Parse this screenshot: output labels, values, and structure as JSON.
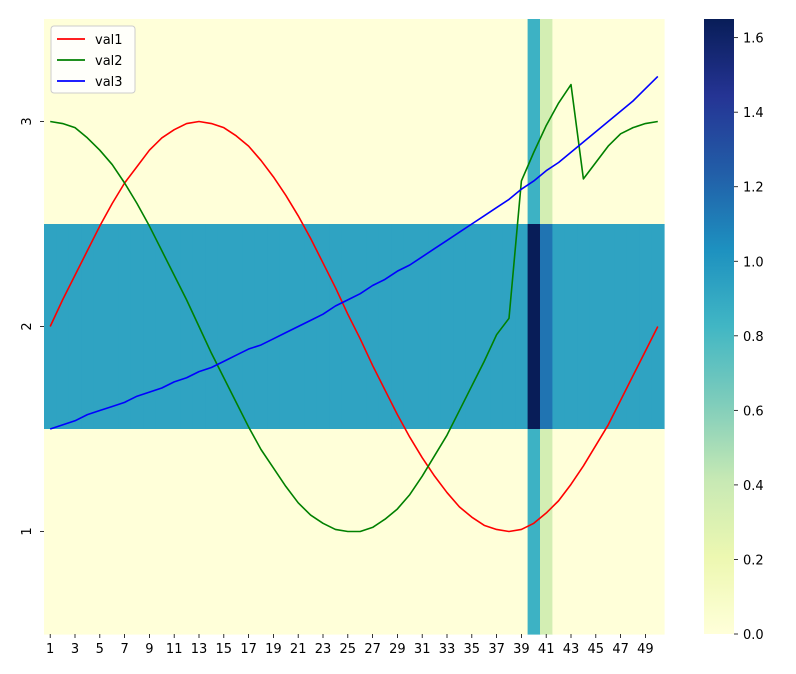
{
  "chart_data": {
    "type": "heatmap",
    "title": "",
    "xlabel": "",
    "ylabel": "",
    "x_tick_labels": [
      "1",
      "3",
      "5",
      "7",
      "9",
      "11",
      "13",
      "15",
      "17",
      "19",
      "21",
      "23",
      "25",
      "27",
      "29",
      "31",
      "33",
      "35",
      "37",
      "39",
      "41",
      "43",
      "45",
      "47",
      "49"
    ],
    "y_tick_labels": [
      "1",
      "2",
      "3"
    ],
    "heatmap": {
      "columns": 50,
      "rows": [
        "1",
        "2",
        "3"
      ],
      "colormap": "YlGnBu",
      "vmin": 0,
      "vmax": 1.65,
      "row_base_values": {
        "1": 0.0,
        "2": 0.93,
        "3": 0.0
      },
      "overrides": [
        {
          "row": "3",
          "col": 40,
          "value": 0.85
        },
        {
          "row": "3",
          "col": 41,
          "value": 0.35
        },
        {
          "row": "2",
          "col": 40,
          "value": 1.65
        },
        {
          "row": "2",
          "col": 41,
          "value": 1.15
        },
        {
          "row": "1",
          "col": 40,
          "value": 0.85
        },
        {
          "row": "1",
          "col": 41,
          "value": 0.35
        }
      ]
    },
    "colorbar": {
      "ticks": [
        0.0,
        0.2,
        0.4,
        0.6,
        0.8,
        1.0,
        1.2,
        1.4,
        1.6
      ],
      "tick_labels": [
        "0.0",
        "0.2",
        "0.4",
        "0.6",
        "0.8",
        "1.0",
        "1.2",
        "1.4",
        "1.6"
      ]
    },
    "legend": {
      "placement": "top-left"
    },
    "series": [
      {
        "name": "val1",
        "color": "#ff0000",
        "x": [
          1,
          2,
          3,
          4,
          5,
          6,
          7,
          8,
          9,
          10,
          11,
          12,
          13,
          14,
          15,
          16,
          17,
          18,
          19,
          20,
          21,
          22,
          23,
          24,
          25,
          26,
          27,
          28,
          29,
          30,
          31,
          32,
          33,
          34,
          35,
          36,
          37,
          38,
          39,
          40,
          41,
          42,
          43,
          44,
          45,
          46,
          47,
          48,
          49,
          50
        ],
        "y": [
          2.0,
          2.13,
          2.25,
          2.37,
          2.49,
          2.6,
          2.7,
          2.78,
          2.86,
          2.92,
          2.96,
          2.99,
          3.0,
          2.99,
          2.97,
          2.93,
          2.88,
          2.81,
          2.73,
          2.64,
          2.54,
          2.43,
          2.31,
          2.19,
          2.06,
          1.94,
          1.81,
          1.69,
          1.57,
          1.46,
          1.36,
          1.27,
          1.19,
          1.12,
          1.07,
          1.03,
          1.01,
          1.0,
          1.01,
          1.04,
          1.09,
          1.15,
          1.23,
          1.32,
          1.42,
          1.52,
          1.64,
          1.76,
          1.88,
          2.0
        ]
      },
      {
        "name": "val2",
        "color": "#008000",
        "x": [
          1,
          2,
          3,
          4,
          5,
          6,
          7,
          8,
          9,
          10,
          11,
          12,
          13,
          14,
          15,
          16,
          17,
          18,
          19,
          20,
          21,
          22,
          23,
          24,
          25,
          26,
          27,
          28,
          29,
          30,
          31,
          32,
          33,
          34,
          35,
          36,
          37,
          38,
          39,
          40,
          41,
          42,
          43,
          44,
          45,
          46,
          47,
          48,
          49,
          50
        ],
        "y": [
          3.0,
          2.99,
          2.97,
          2.92,
          2.86,
          2.79,
          2.7,
          2.6,
          2.49,
          2.37,
          2.25,
          2.13,
          2.0,
          1.87,
          1.75,
          1.63,
          1.51,
          1.4,
          1.31,
          1.22,
          1.14,
          1.08,
          1.04,
          1.01,
          1.0,
          1.0,
          1.02,
          1.06,
          1.11,
          1.18,
          1.27,
          1.37,
          1.47,
          1.59,
          1.71,
          1.83,
          1.96,
          2.04,
          2.71,
          2.85,
          2.98,
          3.09,
          3.18,
          2.72,
          2.8,
          2.88,
          2.94,
          2.97,
          2.99,
          3.0
        ]
      },
      {
        "name": "val3",
        "color": "#0000ff",
        "x": [
          1,
          2,
          3,
          4,
          5,
          6,
          7,
          8,
          9,
          10,
          11,
          12,
          13,
          14,
          15,
          16,
          17,
          18,
          19,
          20,
          21,
          22,
          23,
          24,
          25,
          26,
          27,
          28,
          29,
          30,
          31,
          32,
          33,
          34,
          35,
          36,
          37,
          38,
          39,
          40,
          41,
          42,
          43,
          44,
          45,
          46,
          47,
          48,
          49,
          50
        ],
        "y": [
          1.5,
          1.52,
          1.54,
          1.57,
          1.59,
          1.61,
          1.63,
          1.66,
          1.68,
          1.7,
          1.73,
          1.75,
          1.78,
          1.8,
          1.83,
          1.86,
          1.89,
          1.91,
          1.94,
          1.97,
          2.0,
          2.03,
          2.06,
          2.1,
          2.13,
          2.16,
          2.2,
          2.23,
          2.27,
          2.3,
          2.34,
          2.38,
          2.42,
          2.46,
          2.5,
          2.54,
          2.58,
          2.62,
          2.67,
          2.71,
          2.76,
          2.8,
          2.85,
          2.9,
          2.95,
          3.0,
          3.05,
          3.1,
          3.16,
          3.22
        ]
      }
    ]
  }
}
